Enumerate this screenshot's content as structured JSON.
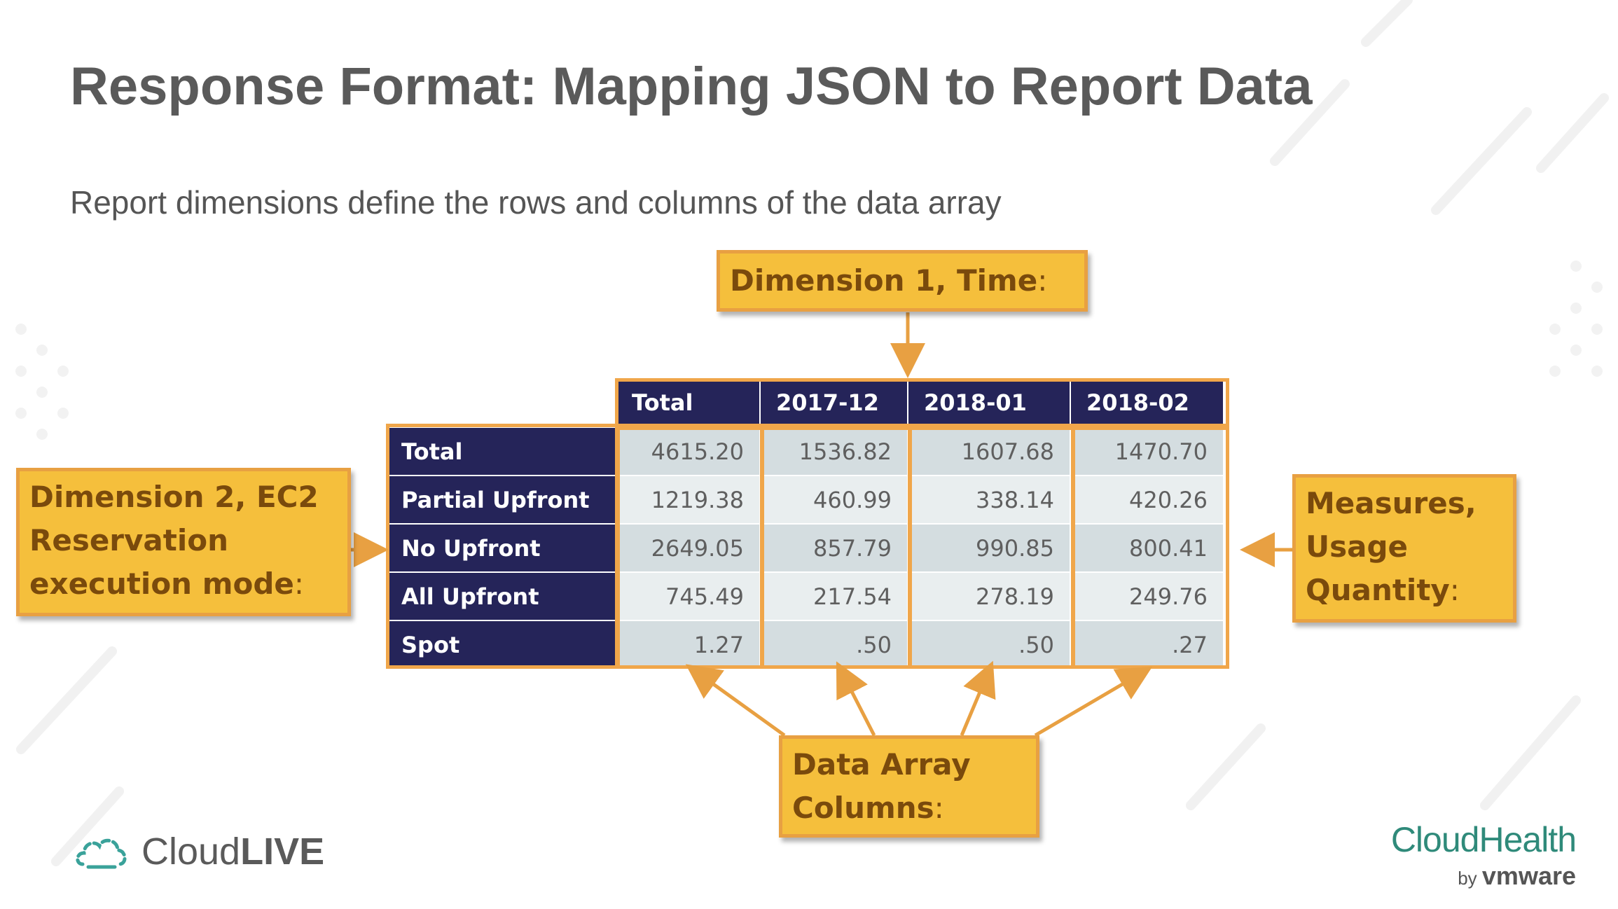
{
  "slide": {
    "title": "Response Format: Mapping JSON to Report Data",
    "subtitle": "Report dimensions define the rows and columns of the data array"
  },
  "table": {
    "columns": [
      "Total",
      "2017-12",
      "2018-01",
      "2018-02"
    ],
    "rows": [
      {
        "label": "Total",
        "values": [
          "4615.20",
          "1536.82",
          "1607.68",
          "1470.70"
        ]
      },
      {
        "label": "Partial Upfront",
        "values": [
          "1219.38",
          "460.99",
          "338.14",
          "420.26"
        ]
      },
      {
        "label": "No Upfront",
        "values": [
          "2649.05",
          "857.79",
          "990.85",
          "800.41"
        ]
      },
      {
        "label": "All Upfront",
        "values": [
          "745.49",
          "217.54",
          "278.19",
          "249.76"
        ]
      },
      {
        "label": "Spot",
        "values": [
          "1.27",
          ".50",
          ".50",
          ".27"
        ]
      }
    ]
  },
  "callouts": {
    "dim1": {
      "label": "Dimension 1, Time",
      "colon": ":"
    },
    "dim2": {
      "line1": "Dimension 2, EC2",
      "line2": "Reservation",
      "line3": "execution mode",
      "colon": ":"
    },
    "measures": {
      "line1": "Measures,",
      "line2": "Usage",
      "line3": "Quantity",
      "colon": ":"
    },
    "columns": {
      "line1": "Data Array",
      "line2": "Columns",
      "colon": ":"
    }
  },
  "logos": {
    "cloudlive": {
      "part1": "Cloud",
      "part2": "LIVE"
    },
    "cloudhealth": {
      "name": "CloudHealth",
      "by": "by",
      "vendor": "vmware"
    }
  },
  "colors": {
    "header_bg": "#252459",
    "callout_bg": "#f5bf3c",
    "callout_border": "#e8a042",
    "highlight": "#f0a64a"
  }
}
